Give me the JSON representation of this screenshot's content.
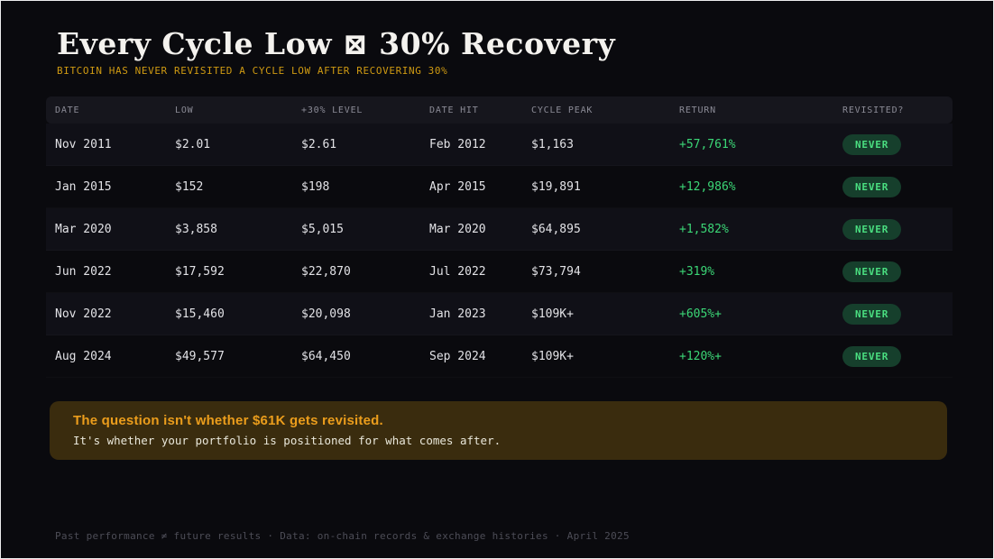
{
  "page": {
    "title": "Every Cycle Low ⊠ 30% Recovery",
    "subtitle": "BITCOIN HAS NEVER REVISITED A CYCLE LOW AFTER RECOVERING 30%"
  },
  "table": {
    "headers": [
      "DATE",
      "LOW",
      "+30% LEVEL",
      "DATE HIT",
      "CYCLE PEAK",
      "RETURN",
      "REVISITED?"
    ],
    "rows": [
      {
        "date": "Nov 2011",
        "low": "$2.01",
        "level": "$2.61",
        "date_hit": "Feb 2012",
        "peak": "$1,163",
        "return": "+57,761%",
        "revisited": "NEVER"
      },
      {
        "date": "Jan 2015",
        "low": "$152",
        "level": "$198",
        "date_hit": "Apr 2015",
        "peak": "$19,891",
        "return": "+12,986%",
        "revisited": "NEVER"
      },
      {
        "date": "Mar 2020",
        "low": "$3,858",
        "level": "$5,015",
        "date_hit": "Mar 2020",
        "peak": "$64,895",
        "return": "+1,582%",
        "revisited": "NEVER"
      },
      {
        "date": "Jun 2022",
        "low": "$17,592",
        "level": "$22,870",
        "date_hit": "Jul 2022",
        "peak": "$73,794",
        "return": "+319%",
        "revisited": "NEVER"
      },
      {
        "date": "Nov 2022",
        "low": "$15,460",
        "level": "$20,098",
        "date_hit": "Jan 2023",
        "peak": "$109K+",
        "return": "+605%+",
        "revisited": "NEVER"
      },
      {
        "date": "Aug 2024",
        "low": "$49,577",
        "level": "$64,450",
        "date_hit": "Sep 2024",
        "peak": "$109K+",
        "return": "+120%+",
        "revisited": "NEVER"
      }
    ]
  },
  "callout": {
    "title": "The question isn't whether $61K gets revisited.",
    "body": "It's whether your portfolio is positioned for what comes after."
  },
  "footer": {
    "text": "Past performance ≠ future results  ·  Data: on-chain records & exchange histories  ·  April 2025"
  },
  "colors": {
    "background": "#0a0a0e",
    "accent_green": "#3bd676",
    "badge_bg": "#163f2c",
    "badge_text": "#4ade80",
    "amber_subtitle": "#cf9a12",
    "callout_bg": "#3a2c0e",
    "callout_title": "#eb9d1c"
  },
  "chart_data": {
    "type": "table",
    "title": "Every Cycle Low ⊠ 30% Recovery",
    "columns": [
      "DATE",
      "LOW",
      "+30% LEVEL",
      "DATE HIT",
      "CYCLE PEAK",
      "RETURN",
      "REVISITED?"
    ],
    "rows": [
      [
        "Nov 2011",
        "$2.01",
        "$2.61",
        "Feb 2012",
        "$1,163",
        "+57,761%",
        "NEVER"
      ],
      [
        "Jan 2015",
        "$152",
        "$198",
        "Apr 2015",
        "$19,891",
        "+12,986%",
        "NEVER"
      ],
      [
        "Mar 2020",
        "$3,858",
        "$5,015",
        "Mar 2020",
        "$64,895",
        "+1,582%",
        "NEVER"
      ],
      [
        "Jun 2022",
        "$17,592",
        "$22,870",
        "Jul 2022",
        "$73,794",
        "+319%",
        "NEVER"
      ],
      [
        "Nov 2022",
        "$15,460",
        "$20,098",
        "Jan 2023",
        "$109K+",
        "+605%+",
        "NEVER"
      ],
      [
        "Aug 2024",
        "$49,577",
        "$64,450",
        "Sep 2024",
        "$109K+",
        "+120%+",
        "NEVER"
      ]
    ]
  }
}
